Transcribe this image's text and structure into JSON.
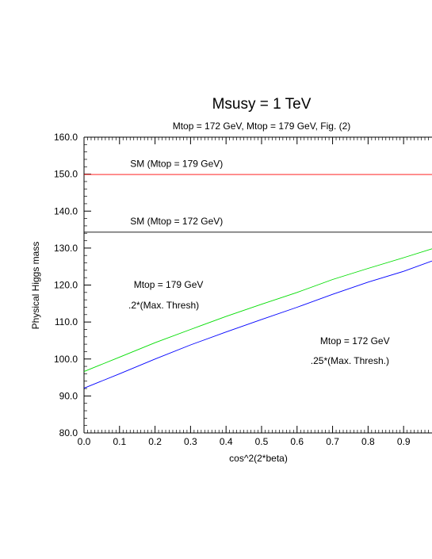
{
  "chart_data": {
    "type": "line",
    "title": "Msusy = 1 TeV",
    "subtitle": "Mtop = 172 GeV, Mtop = 179 GeV, Fig. (2)",
    "xlabel": "cos^2(2*beta)",
    "ylabel": "Physical Higgs mass",
    "xlim": [
      0.0,
      0.98
    ],
    "ylim": [
      80.0,
      160.0
    ],
    "x_ticks": [
      "0.0",
      "0.1",
      "0.2",
      "0.3",
      "0.4",
      "0.5",
      "0.6",
      "0.7",
      "0.8",
      "0.9"
    ],
    "y_ticks": [
      "80.0",
      "90.0",
      "100.0",
      "110.0",
      "120.0",
      "130.0",
      "140.0",
      "150.0",
      "160.0"
    ],
    "grid": false,
    "series": [
      {
        "color": "#ff0000",
        "x": [
          0.0,
          0.98
        ],
        "y": [
          149.9,
          149.9
        ]
      },
      {
        "color": "#000000",
        "x": [
          0.0,
          0.98
        ],
        "y": [
          134.3,
          134.3
        ]
      },
      {
        "color": "#00dd00",
        "x": [
          0.0,
          0.1,
          0.2,
          0.3,
          0.4,
          0.5,
          0.6,
          0.7,
          0.8,
          0.9,
          0.98
        ],
        "y": [
          96.6,
          100.5,
          104.4,
          108.0,
          111.5,
          114.8,
          118.0,
          121.5,
          124.5,
          127.4,
          129.8
        ]
      },
      {
        "color": "#0000ff",
        "x": [
          0.0,
          0.1,
          0.2,
          0.3,
          0.4,
          0.5,
          0.6,
          0.7,
          0.8,
          0.9,
          0.98
        ],
        "y": [
          92.1,
          96.0,
          100.0,
          103.8,
          107.3,
          110.7,
          114.0,
          117.5,
          120.8,
          123.7,
          126.5
        ]
      }
    ],
    "annotations": [
      {
        "text": "SM (Mtop = 179 GeV)",
        "x": 0.13,
        "y": 152.0
      },
      {
        "text": "SM (Mtop = 172 GeV)",
        "x": 0.13,
        "y": 136.4
      },
      {
        "text": "Mtop = 179 GeV",
        "x": 0.14,
        "y": 119.2
      },
      {
        "text": ".2*(Max. Thresh)",
        "x": 0.125,
        "y": 113.7
      },
      {
        "text": "Mtop = 172 GeV",
        "x": 0.665,
        "y": 104.0
      },
      {
        "text": ".25*(Max. Thresh.)",
        "x": 0.638,
        "y": 98.7
      }
    ]
  }
}
